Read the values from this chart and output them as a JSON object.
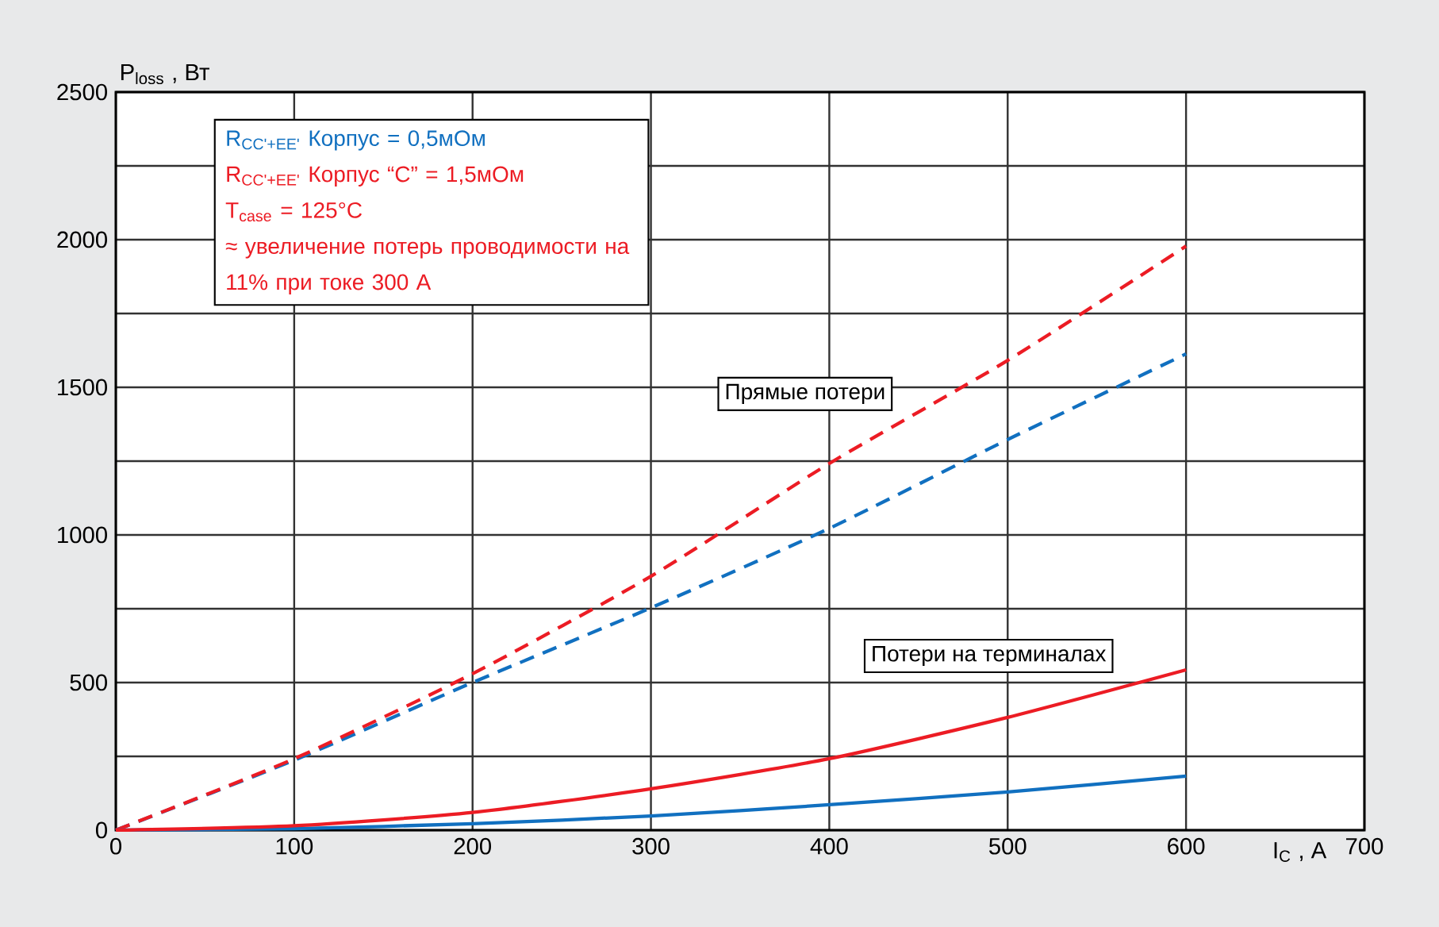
{
  "chart_data": {
    "type": "line",
    "xlabel": "I$_{C}$ , A",
    "ylabel": "P$_{loss}$ , Вт",
    "x": [
      0,
      100,
      200,
      300,
      400,
      500,
      600
    ],
    "series": [
      {
        "color": "#1170c0",
        "line_style": "dashed",
        "values": [
          0,
          237,
          500,
          753,
          1022,
          1323,
          1613
        ]
      },
      {
        "color": "#ec1c24",
        "line_style": "dashed",
        "values": [
          0,
          242,
          530,
          860,
          1242,
          1591,
          1978
        ]
      },
      {
        "color": "#1170c0",
        "line_style": "solid",
        "values": [
          0,
          5,
          22,
          48,
          86,
          129,
          183
        ]
      },
      {
        "color": "#ec1c24",
        "line_style": "solid",
        "values": [
          0,
          15,
          60,
          140,
          242,
          382,
          543
        ]
      }
    ],
    "xlim": [
      0,
      700
    ],
    "ylim": [
      0,
      2500
    ],
    "xticks": [
      0,
      100,
      200,
      300,
      400,
      500,
      600,
      700
    ],
    "yticks": [
      0,
      {
        "value": 250,
        "label": null
      },
      500,
      {
        "value": 750,
        "label": null
      },
      1000,
      {
        "value": 1250,
        "label": null
      },
      1500,
      {
        "value": 1750,
        "label": null
      },
      2000,
      {
        "value": 2250,
        "label": null
      },
      2500
    ],
    "grid": true,
    "annotations": [
      "R$_{CC'+EE'}$ Корпус = 0,5мОм",
      "R$_{CC'+EE'}$ Корпус “C” = 1,5мОм",
      "T$_{case}$ = 125°C",
      "≈ увеличение потерь проводимости на 11% при токе 300 А",
      "Прямые потери",
      "Потери на терминалах"
    ]
  }
}
